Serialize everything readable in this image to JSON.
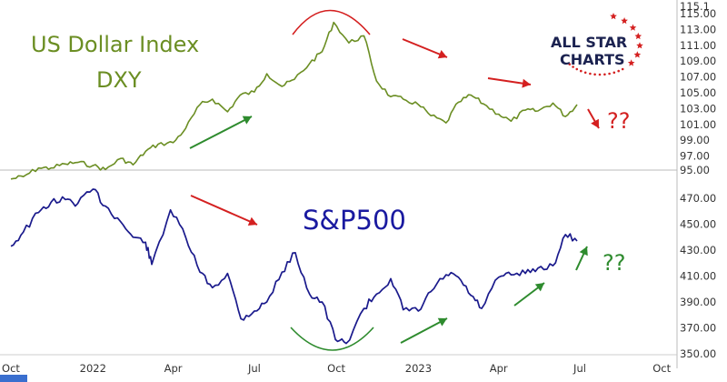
{
  "chart_data": [
    {
      "type": "line",
      "title": "US Dollar Index",
      "subtitle": "DXY",
      "title_color": "#6b8e23",
      "line_color": "#6b8e23",
      "ylim": [
        95,
        115.5
      ],
      "ytick_labels": [
        "97.00",
        "99.00",
        "101.00",
        "103.00",
        "105.00",
        "107.00",
        "109.00",
        "111.00",
        "113.00",
        "115.00"
      ],
      "cut_labels": [
        "95.00",
        "115.1"
      ],
      "annotation": "??",
      "annotation_color": "#d32020",
      "series": [
        {
          "x": [
            "2021-10-01",
            "2021-10-15",
            "2021-11-01",
            "2021-11-15",
            "2021-12-01",
            "2021-12-15",
            "2022-01-01",
            "2022-01-15",
            "2022-02-01",
            "2022-02-15",
            "2022-03-01",
            "2022-03-15",
            "2022-04-01",
            "2022-04-15",
            "2022-05-01",
            "2022-05-15",
            "2022-06-01",
            "2022-06-15",
            "2022-07-01",
            "2022-07-15",
            "2022-08-01",
            "2022-08-15",
            "2022-09-01",
            "2022-09-15",
            "2022-09-28",
            "2022-10-15",
            "2022-11-01",
            "2022-11-15",
            "2022-12-01",
            "2022-12-15",
            "2023-01-01",
            "2023-01-15",
            "2023-02-01",
            "2023-02-15",
            "2023-03-01",
            "2023-03-15",
            "2023-04-01",
            "2023-04-15",
            "2023-05-01",
            "2023-05-15",
            "2023-06-01",
            "2023-06-15",
            "2023-06-28"
          ],
          "values": [
            94.1,
            94.4,
            95.5,
            95.5,
            96.0,
            96.2,
            95.8,
            95.3,
            96.7,
            95.9,
            97.6,
            98.5,
            98.7,
            100.5,
            103.5,
            104.2,
            102.6,
            104.7,
            105.1,
            107.4,
            105.8,
            106.7,
            108.7,
            110.2,
            113.9,
            111.3,
            112.2,
            106.5,
            104.5,
            104.2,
            103.5,
            102.1,
            101.2,
            103.8,
            104.7,
            103.6,
            102.3,
            101.4,
            102.8,
            102.7,
            103.7,
            102.0,
            103.5
          ]
        }
      ]
    },
    {
      "type": "line",
      "title": "S&P500",
      "title_color": "#1a1aa0",
      "line_color": "#1a1a8c",
      "ylim": [
        345,
        485
      ],
      "ytick_labels": [
        "350.00",
        "370.00",
        "390.00",
        "410.00",
        "430.00",
        "450.00",
        "470.00"
      ],
      "annotation": "??",
      "annotation_color": "#2e8b2e",
      "series": [
        {
          "x": [
            "2021-10-01",
            "2021-10-15",
            "2021-11-01",
            "2021-11-15",
            "2021-12-01",
            "2021-12-15",
            "2022-01-01",
            "2022-01-15",
            "2022-02-01",
            "2022-02-15",
            "2022-03-01",
            "2022-03-08",
            "2022-03-29",
            "2022-04-15",
            "2022-05-01",
            "2022-05-15",
            "2022-06-01",
            "2022-06-16",
            "2022-07-01",
            "2022-07-15",
            "2022-08-01",
            "2022-08-16",
            "2022-09-01",
            "2022-09-15",
            "2022-09-30",
            "2022-10-12",
            "2022-11-01",
            "2022-11-15",
            "2022-12-01",
            "2022-12-15",
            "2023-01-01",
            "2023-01-15",
            "2023-02-01",
            "2023-02-15",
            "2023-03-01",
            "2023-03-13",
            "2023-04-01",
            "2023-04-15",
            "2023-05-01",
            "2023-05-15",
            "2023-06-01",
            "2023-06-15",
            "2023-06-28"
          ],
          "values": [
            433,
            444,
            459,
            467,
            469,
            466,
            477,
            464,
            452,
            440,
            436,
            419,
            461,
            440,
            413,
            401,
            412,
            377,
            383,
            390,
            413,
            428,
            396,
            390,
            361,
            358,
            385,
            396,
            408,
            384,
            383,
            398,
            411,
            409,
            395,
            385,
            409,
            411,
            412,
            416,
            418,
            442,
            437
          ]
        }
      ]
    }
  ],
  "x_axis": {
    "labels": [
      "Oct",
      "2022",
      "Apr",
      "Jul",
      "Oct",
      "2023",
      "Apr",
      "Jul",
      "Oct"
    ]
  },
  "logo": {
    "line1": "ALL STAR",
    "line2": "CHARTS",
    "text_color": "#1b2250",
    "star_color": "#d42020"
  },
  "colors": {
    "red_arrow": "#d42020",
    "green_arrow": "#2e8b2e",
    "background": "#ffffff"
  }
}
